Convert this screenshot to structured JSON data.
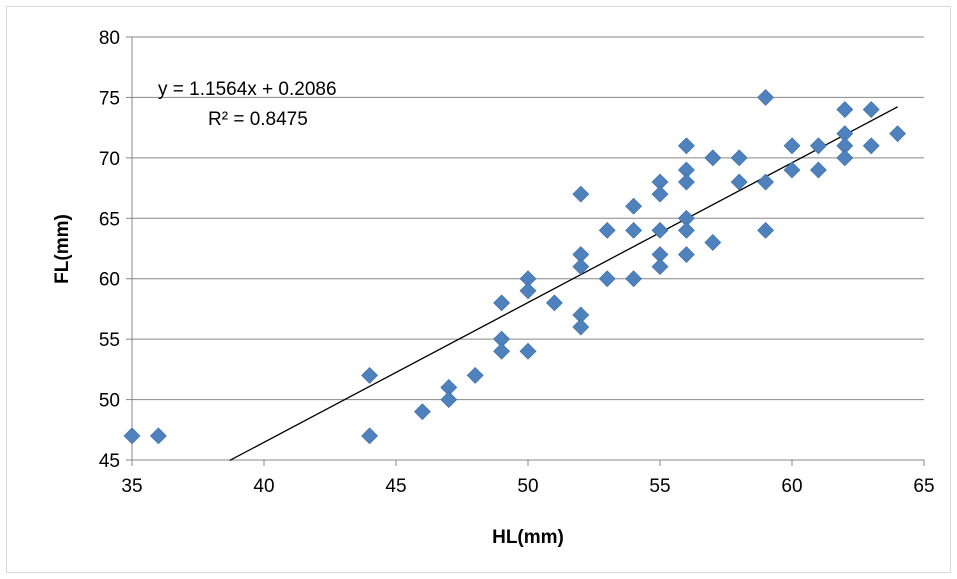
{
  "chart_data": {
    "type": "scatter",
    "title": "",
    "xlabel": "HL(mm)",
    "ylabel": "FL(mm)",
    "xlim": [
      35,
      65
    ],
    "ylim": [
      45,
      80
    ],
    "x_ticks": [
      35,
      40,
      45,
      50,
      55,
      60,
      65
    ],
    "y_ticks": [
      45,
      50,
      55,
      60,
      65,
      70,
      75,
      80
    ],
    "grid": "horizontal",
    "legend": "none",
    "marker": "diamond",
    "marker_color": "#4f81bd",
    "points": [
      [
        35,
        47
      ],
      [
        36,
        47
      ],
      [
        44,
        52
      ],
      [
        44,
        47
      ],
      [
        46,
        49
      ],
      [
        47,
        51
      ],
      [
        47,
        50
      ],
      [
        48,
        52
      ],
      [
        49,
        58
      ],
      [
        49,
        55
      ],
      [
        49,
        54
      ],
      [
        50,
        60
      ],
      [
        50,
        59
      ],
      [
        50,
        54
      ],
      [
        51,
        58
      ],
      [
        52,
        67
      ],
      [
        52,
        62
      ],
      [
        52,
        61
      ],
      [
        52,
        57
      ],
      [
        52,
        56
      ],
      [
        53,
        64
      ],
      [
        53,
        60
      ],
      [
        54,
        66
      ],
      [
        54,
        64
      ],
      [
        54,
        60
      ],
      [
        55,
        68
      ],
      [
        55,
        67
      ],
      [
        55,
        64
      ],
      [
        55,
        62
      ],
      [
        55,
        61
      ],
      [
        56,
        71
      ],
      [
        56,
        69
      ],
      [
        56,
        68
      ],
      [
        56,
        65
      ],
      [
        56,
        64
      ],
      [
        56,
        62
      ],
      [
        57,
        70
      ],
      [
        57,
        63
      ],
      [
        58,
        70
      ],
      [
        58,
        68
      ],
      [
        59,
        75
      ],
      [
        59,
        68
      ],
      [
        59,
        64
      ],
      [
        60,
        71
      ],
      [
        60,
        69
      ],
      [
        61,
        71
      ],
      [
        61,
        69
      ],
      [
        62,
        74
      ],
      [
        62,
        72
      ],
      [
        62,
        71
      ],
      [
        62,
        70
      ],
      [
        63,
        74
      ],
      [
        63,
        71
      ],
      [
        64,
        72
      ]
    ],
    "trendline": {
      "type": "linear",
      "slope": 1.1564,
      "intercept": 0.2086,
      "x_range": [
        38.7,
        64
      ],
      "color": "#000000",
      "equation_label": "y = 1.1564x + 0.2086",
      "r2_label": "R² = 0.8475"
    }
  }
}
